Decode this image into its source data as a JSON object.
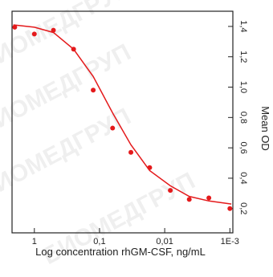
{
  "chart_data": {
    "type": "scatter",
    "xlabel": "Log concentration rhGM-CSF, ng/mL",
    "ylabel": "Mean OD",
    "watermark": "БИОМЕДГРУП",
    "xscale": "log",
    "xlim": [
      2.2,
      0.0009
    ],
    "ylim": [
      0.04,
      1.5
    ],
    "xticks": [
      1,
      {
        "value": 0.1,
        "label": "0,1"
      },
      {
        "value": 0.01,
        "label": "0,01"
      },
      {
        "value": 0.001,
        "label": "1E-3"
      }
    ],
    "yticks": [
      {
        "value": 0.2,
        "label": "0,2"
      },
      {
        "value": 0.4,
        "label": "0,4"
      },
      {
        "value": 0.6,
        "label": "0,6"
      },
      {
        "value": 0.8,
        "label": "0,8"
      },
      {
        "value": 1.0,
        "label": "1,0"
      },
      {
        "value": 1.2,
        "label": "1,2"
      },
      {
        "value": 1.4,
        "label": "1,4"
      }
    ],
    "series": [
      {
        "color": "#e41a1c",
        "x": [
          2.0,
          1,
          0.51,
          0.25,
          0.125,
          0.063,
          0.033,
          0.017,
          0.0082,
          0.0042,
          0.0021,
          0.001
        ],
        "values": [
          1.395,
          1.35,
          1.375,
          1.25,
          0.98,
          0.73,
          0.57,
          0.47,
          0.32,
          0.26,
          0.27,
          0.2
        ]
      },
      {
        "color": "#e41a1c",
        "line": true,
        "x": [
          2.1,
          1,
          0.51,
          0.25,
          0.125,
          0.063,
          0.033,
          0.017,
          0.0082,
          0.0042,
          0.0021,
          0.00095
        ],
        "values": [
          1.41,
          1.395,
          1.36,
          1.25,
          1.07,
          0.83,
          0.62,
          0.45,
          0.35,
          0.28,
          0.25,
          0.23
        ]
      }
    ]
  }
}
